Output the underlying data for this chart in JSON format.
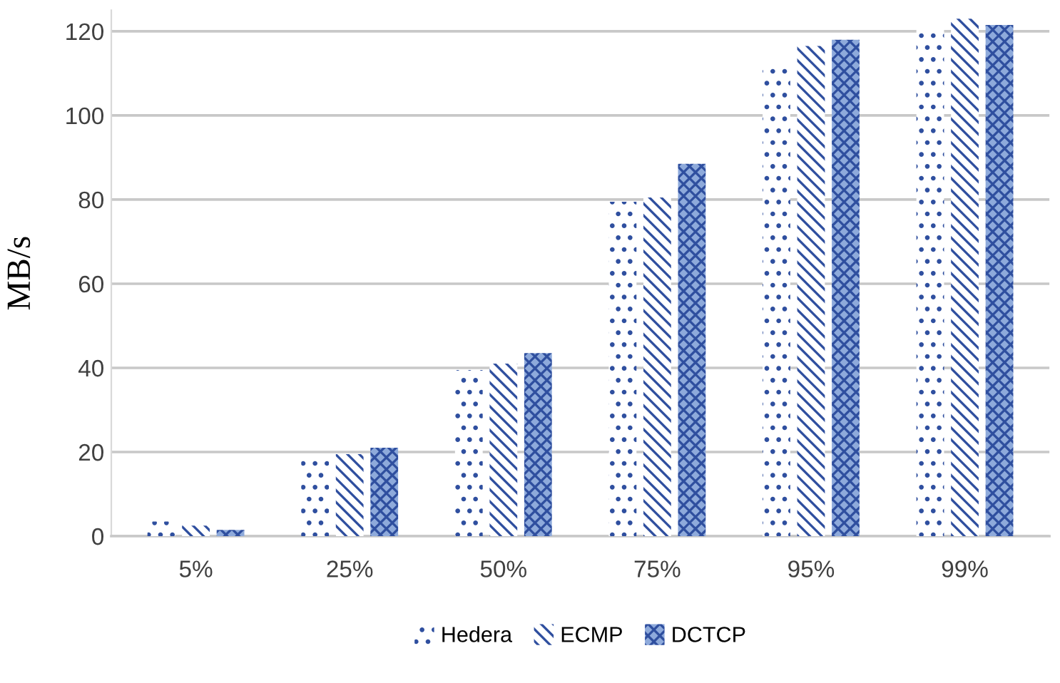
{
  "chart_data": {
    "type": "bar",
    "ylabel": "MB/s",
    "categories": [
      "5%",
      "25%",
      "50%",
      "75%",
      "95%",
      "99%"
    ],
    "series": [
      {
        "name": "Hedera",
        "color": "#2f4f9f",
        "values": [
          3.5,
          18.5,
          39.5,
          79.5,
          112,
          121
        ]
      },
      {
        "name": "ECMP",
        "color": "#2f4f9f",
        "values": [
          2.5,
          19.5,
          41,
          80.5,
          116.5,
          123
        ]
      },
      {
        "name": "DCTCP",
        "color": "#8eaadb",
        "values": [
          1.5,
          21,
          43.5,
          88.5,
          118,
          121.5
        ]
      }
    ],
    "ylim": [
      0,
      125
    ],
    "yticks": [
      0,
      20,
      40,
      60,
      80,
      100,
      120
    ],
    "grid": "y",
    "legend": "bottom"
  }
}
